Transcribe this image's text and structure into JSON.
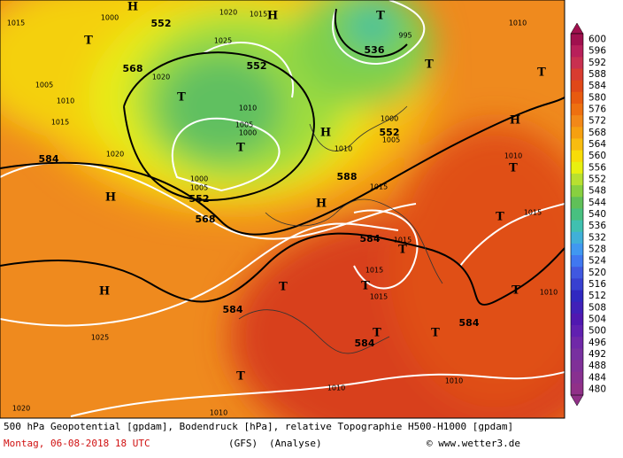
{
  "map": {
    "contour_labels": [
      "552",
      "552",
      "568",
      "536",
      "552",
      "584",
      "552",
      "568",
      "588",
      "584",
      "584",
      "584",
      "584"
    ],
    "pressure_systems": [
      "T",
      "T",
      "T",
      "T",
      "T",
      "T",
      "T",
      "T",
      "T",
      "T",
      "T",
      "T",
      "T",
      "T",
      "H",
      "H",
      "H",
      "H",
      "H",
      "H",
      "H",
      "T"
    ],
    "pressure_labels": [
      "1000",
      "1020",
      "1015",
      "1025",
      "1005",
      "1010",
      "1015",
      "1020",
      "1010",
      "1005",
      "1000",
      "1020",
      "1000",
      "1005",
      "1010",
      "1000",
      "1005",
      "1015",
      "1010",
      "1015",
      "1015",
      "1015",
      "1015",
      "1010",
      "1025",
      "1020",
      "1010",
      "1010",
      "1010",
      "1010",
      "1015",
      "995"
    ]
  },
  "colorbar": {
    "levels": [
      "600",
      "596",
      "592",
      "588",
      "584",
      "580",
      "576",
      "572",
      "568",
      "564",
      "560",
      "556",
      "552",
      "548",
      "544",
      "540",
      "536",
      "532",
      "528",
      "524",
      "520",
      "516",
      "512",
      "508",
      "504",
      "500",
      "496",
      "492",
      "488",
      "484",
      "480"
    ],
    "colors": [
      "#a0104e",
      "#b8205a",
      "#c83050",
      "#d83c30",
      "#e04818",
      "#e85a10",
      "#ee7010",
      "#f28818",
      "#f6a010",
      "#f8bc10",
      "#f8dc08",
      "#e8f010",
      "#b8e030",
      "#88d040",
      "#60c058",
      "#48c080",
      "#40c0b0",
      "#40b0d8",
      "#4098f0",
      "#4078f0",
      "#4058e0",
      "#3840d0",
      "#3028c0",
      "#4020b8",
      "#5018b0",
      "#6020b0",
      "#7028a8",
      "#7830a0",
      "#803098",
      "#883090",
      "#903088"
    ]
  },
  "footer": {
    "line1": "500 hPa Geopotential [gpdam], Bodendruck [hPa], relative Topographie H500-H1000 [gpdam]",
    "date": "Montag, 06-08-2018  18 UTC",
    "model": "(GFS)",
    "run": "(Analyse)",
    "credit": "© www.wetter3.de"
  }
}
